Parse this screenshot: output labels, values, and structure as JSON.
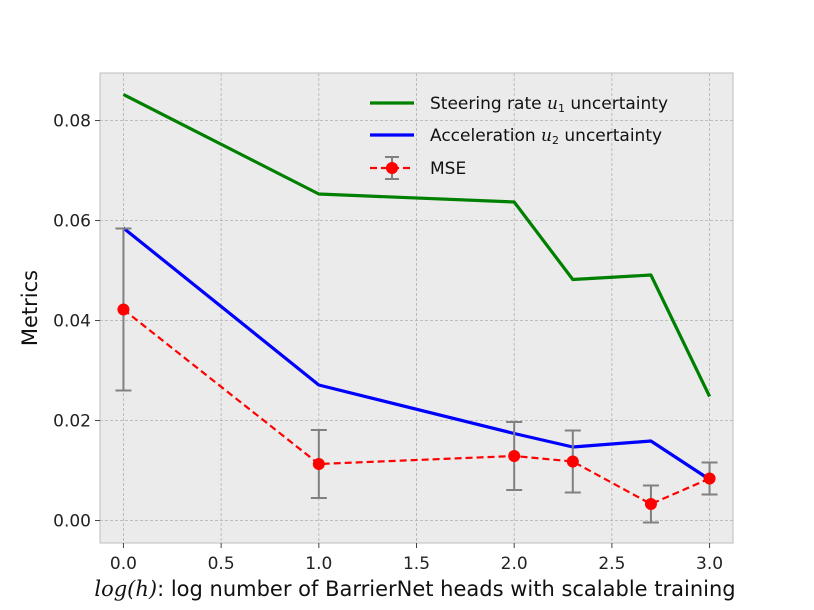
{
  "chart_data": {
    "type": "line",
    "title": "",
    "xlabel": "log(h): log number of BarrierNet heads with scalable training",
    "xlabel_parts": {
      "math": "log(h)",
      "text": ": log number of BarrierNet heads with scalable training"
    },
    "ylabel": "Metrics",
    "xlim": [
      -0.12,
      3.12
    ],
    "ylim": [
      -0.0045,
      0.0895
    ],
    "xticks": [
      0.0,
      0.5,
      1.0,
      1.5,
      2.0,
      2.5,
      3.0
    ],
    "xtick_labels": [
      "0.0",
      "0.5",
      "1.0",
      "1.5",
      "2.0",
      "2.5",
      "3.0"
    ],
    "yticks": [
      0.0,
      0.02,
      0.04,
      0.06,
      0.08
    ],
    "ytick_labels": [
      "0.00",
      "0.02",
      "0.04",
      "0.06",
      "0.08"
    ],
    "grid": true,
    "legend_position": "top-right",
    "series": [
      {
        "name": "Steering rate u1 uncertainty",
        "legend_text": "Steering rate ",
        "legend_math": "u",
        "legend_sub": "1",
        "legend_suffix": " uncertainty",
        "color": "#008000",
        "style": "solid",
        "x": [
          0.0,
          1.0,
          2.0,
          2.3,
          2.7,
          3.0
        ],
        "y": [
          0.0852,
          0.0653,
          0.0637,
          0.0482,
          0.0491,
          0.0248
        ]
      },
      {
        "name": "Acceleration u2 uncertainty",
        "legend_text": "Acceleration ",
        "legend_math": "u",
        "legend_sub": "2",
        "legend_suffix": " uncertainty",
        "color": "#0000ff",
        "style": "solid",
        "x": [
          0.0,
          1.0,
          2.0,
          2.3,
          2.7,
          3.0
        ],
        "y": [
          0.0585,
          0.0271,
          0.0174,
          0.0147,
          0.0159,
          0.0082
        ]
      },
      {
        "name": "MSE",
        "legend_text": "MSE",
        "color": "#ff0000",
        "style": "dashed",
        "marker": "circle",
        "error_color": "#808080",
        "x": [
          0.0,
          1.0,
          2.0,
          2.3,
          2.7,
          3.0
        ],
        "y": [
          0.0422,
          0.0113,
          0.0129,
          0.0118,
          0.0033,
          0.0084
        ],
        "yerr": [
          0.0162,
          0.0068,
          0.0068,
          0.0062,
          0.0037,
          0.0032
        ]
      }
    ]
  }
}
